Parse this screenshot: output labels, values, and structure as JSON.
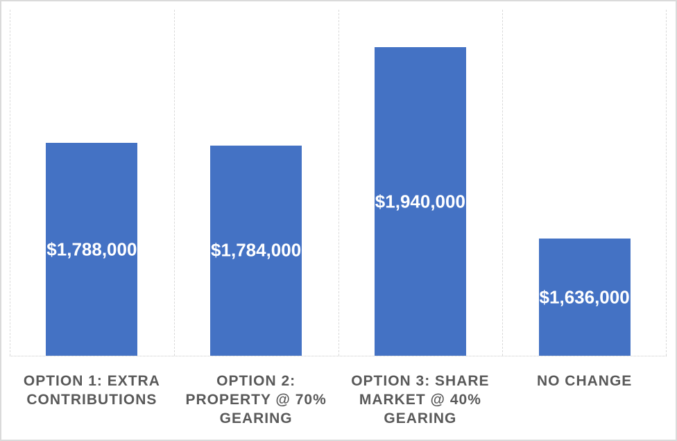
{
  "chart_data": {
    "type": "bar",
    "title": "",
    "xlabel": "",
    "ylabel": "",
    "categories": [
      "OPTION 1: EXTRA CONTRIBUTIONS",
      "OPTION 2: PROPERTY @ 70% GEARING",
      "OPTION 3: SHARE MARKET @ 40% GEARING",
      "NO CHANGE"
    ],
    "categories_lines": [
      [
        "OPTION 1: EXTRA",
        "CONTRIBUTIONS"
      ],
      [
        "OPTION 2:",
        "PROPERTY @ 70%",
        "GEARING"
      ],
      [
        "OPTION 3: SHARE",
        "MARKET @ 40%",
        "GEARING"
      ],
      [
        "NO CHANGE"
      ]
    ],
    "values": [
      1788000,
      1784000,
      1940000,
      1636000
    ],
    "labels": [
      "$1,788,000",
      "$1,784,000",
      "$1,940,000",
      "$1,636,000"
    ],
    "ylim": [
      1450000,
      2000000
    ],
    "grid": "vertical dashed gridlines at category boundaries",
    "legend": "none",
    "data_label_position": "center-of-bar"
  },
  "colors": {
    "bar": "#4472C4",
    "data_label_text": "#FFFFFF",
    "category_label_text": "#595959",
    "gridline": "#D9D9D9",
    "axis_line": "#C8C8C8",
    "frame_border": "#DADADA",
    "background": "#FFFFFF"
  }
}
